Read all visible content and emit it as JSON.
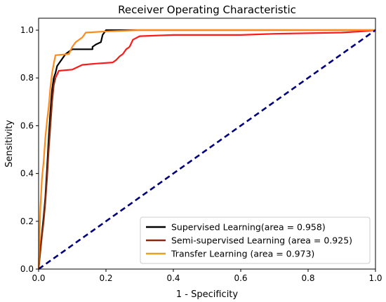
{
  "chart_data": {
    "type": "line",
    "title": "Receiver Operating Characteristic",
    "xlabel": "1 - Specificity",
    "ylabel": "Sensitivity",
    "xlim": [
      0.0,
      1.0
    ],
    "ylim": [
      0.0,
      1.05
    ],
    "x_ticks": [
      "0.0",
      "0.2",
      "0.4",
      "0.6",
      "0.8",
      "1.0"
    ],
    "y_ticks": [
      "0.0",
      "0.2",
      "0.4",
      "0.6",
      "0.8",
      "1.0"
    ],
    "grid": false,
    "legend_position": "lower-right",
    "legend": [
      {
        "label": "Supervised Learning(area = 0.958)",
        "color": "#000000"
      },
      {
        "label": "Semi-supervised Learning (area = 0.925)",
        "color": "#8B2A0A"
      },
      {
        "label": "Transfer Learning (area = 0.973)",
        "color": "#E8A020"
      }
    ],
    "series": [
      {
        "color": "#000000",
        "points": [
          [
            0,
            0
          ],
          [
            0.005,
            0.08
          ],
          [
            0.01,
            0.15
          ],
          [
            0.015,
            0.22
          ],
          [
            0.02,
            0.3
          ],
          [
            0.025,
            0.42
          ],
          [
            0.03,
            0.55
          ],
          [
            0.035,
            0.66
          ],
          [
            0.04,
            0.75
          ],
          [
            0.045,
            0.8
          ],
          [
            0.05,
            0.82
          ],
          [
            0.055,
            0.85
          ],
          [
            0.06,
            0.86
          ],
          [
            0.07,
            0.88
          ],
          [
            0.08,
            0.9
          ],
          [
            0.09,
            0.91
          ],
          [
            0.1,
            0.92
          ],
          [
            0.16,
            0.92
          ],
          [
            0.16,
            0.93
          ],
          [
            0.17,
            0.94
          ],
          [
            0.185,
            0.95
          ],
          [
            0.19,
            0.98
          ],
          [
            0.2,
            1.0
          ],
          [
            1,
            1.0
          ]
        ]
      },
      {
        "color": "#8B2A0A",
        "points": [
          [
            0,
            0
          ],
          [
            0.005,
            0.07
          ],
          [
            0.01,
            0.14
          ],
          [
            0.015,
            0.2
          ],
          [
            0.02,
            0.28
          ],
          [
            0.025,
            0.38
          ],
          [
            0.03,
            0.5
          ],
          [
            0.035,
            0.6
          ],
          [
            0.04,
            0.7
          ],
          [
            0.045,
            0.77
          ],
          [
            0.05,
            0.8
          ]
        ]
      },
      {
        "color": "#FF1A1A",
        "points": [
          [
            0.05,
            0.8
          ],
          [
            0.06,
            0.83
          ],
          [
            0.1,
            0.835
          ],
          [
            0.13,
            0.855
          ],
          [
            0.17,
            0.86
          ],
          [
            0.22,
            0.865
          ],
          [
            0.23,
            0.875
          ],
          [
            0.24,
            0.89
          ],
          [
            0.25,
            0.9
          ],
          [
            0.26,
            0.92
          ],
          [
            0.27,
            0.93
          ],
          [
            0.28,
            0.96
          ],
          [
            0.3,
            0.975
          ],
          [
            0.4,
            0.98
          ],
          [
            0.6,
            0.98
          ],
          [
            0.7,
            0.985
          ],
          [
            0.9,
            0.99
          ],
          [
            0.96,
            0.995
          ],
          [
            1,
            1.0
          ]
        ]
      },
      {
        "color": "#FF8C1A",
        "points": [
          [
            0,
            0
          ],
          [
            0.005,
            0.25
          ],
          [
            0.01,
            0.38
          ],
          [
            0.015,
            0.45
          ],
          [
            0.02,
            0.55
          ],
          [
            0.025,
            0.62
          ],
          [
            0.03,
            0.68
          ],
          [
            0.035,
            0.76
          ],
          [
            0.04,
            0.82
          ],
          [
            0.045,
            0.86
          ],
          [
            0.05,
            0.895
          ],
          [
            0.09,
            0.9
          ],
          [
            0.1,
            0.93
          ],
          [
            0.11,
            0.95
          ],
          [
            0.13,
            0.97
          ],
          [
            0.14,
            0.99
          ],
          [
            0.2,
            0.995
          ],
          [
            0.3,
            1.0
          ],
          [
            1,
            1.0
          ]
        ]
      },
      {
        "color": "#000080",
        "dashed": true,
        "points": [
          [
            0,
            0
          ],
          [
            1,
            1
          ]
        ]
      }
    ]
  }
}
